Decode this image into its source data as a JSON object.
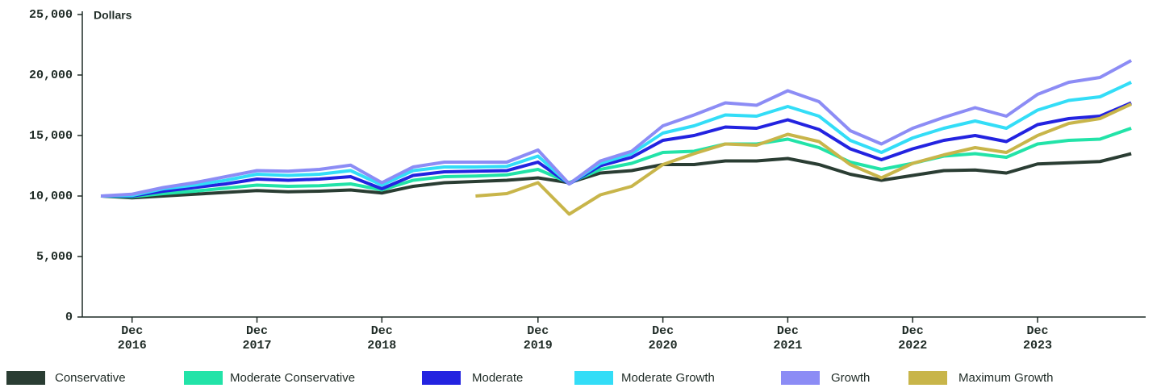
{
  "chart_data": {
    "type": "line",
    "y_axis_label": "Dollars",
    "categories": [
      null,
      "Dec 2016",
      null,
      null,
      null,
      "Dec 2017",
      null,
      null,
      null,
      "Dec 2018",
      null,
      null,
      null,
      null,
      "Dec 2019",
      null,
      null,
      null,
      "Dec 2020",
      null,
      null,
      null,
      "Dec 2021",
      null,
      null,
      null,
      "Dec 2022",
      null,
      null,
      null,
      "Dec 2023",
      null,
      null,
      null
    ],
    "ylim": [
      0,
      25000
    ],
    "yticks": [
      0,
      {
        "value": 5000,
        "label": "5,000"
      },
      {
        "value": 10000,
        "label": "10,000"
      },
      {
        "value": 15000,
        "label": "15,000"
      },
      {
        "value": 20000,
        "label": "20,000"
      },
      {
        "value": 25000,
        "label": "25,000"
      }
    ],
    "series": [
      {
        "name": "Conservative",
        "color": "#2a3d33",
        "values": [
          10000,
          9850,
          10000,
          10150,
          10300,
          10450,
          10350,
          10400,
          10500,
          10250,
          10800,
          11100,
          11200,
          11300,
          11500,
          11100,
          11900,
          12100,
          12600,
          12600,
          12900,
          12900,
          13100,
          12600,
          11800,
          11300,
          11700,
          12100,
          12150,
          11900,
          12650,
          12750,
          12850,
          13500
        ]
      },
      {
        "name": "Moderate Conservative",
        "color": "#22e3a8",
        "values": [
          10000,
          9950,
          10200,
          10400,
          10650,
          10900,
          10800,
          10850,
          11000,
          10500,
          11300,
          11600,
          11650,
          11750,
          12200,
          11100,
          12200,
          12700,
          13600,
          13700,
          14300,
          14300,
          14700,
          14000,
          12800,
          12200,
          12700,
          13300,
          13500,
          13200,
          14300,
          14600,
          14700,
          15600
        ]
      },
      {
        "name": "Moderate",
        "color": "#2323e0",
        "values": [
          10000,
          10000,
          10400,
          10700,
          11000,
          11400,
          11300,
          11400,
          11600,
          10600,
          11700,
          12000,
          12050,
          12100,
          12800,
          11000,
          12500,
          13200,
          14600,
          15000,
          15700,
          15600,
          16300,
          15500,
          13900,
          13000,
          13900,
          14600,
          15000,
          14500,
          15900,
          16400,
          16600,
          17700
        ]
      },
      {
        "name": "Moderate Growth",
        "color": "#33ddf7",
        "values": [
          10000,
          10050,
          10600,
          10900,
          11300,
          11800,
          11700,
          11800,
          12100,
          10900,
          12100,
          12400,
          12400,
          12450,
          13300,
          11000,
          12700,
          13500,
          15200,
          15800,
          16700,
          16600,
          17400,
          16600,
          14600,
          13600,
          14800,
          15600,
          16200,
          15600,
          17100,
          17900,
          18200,
          19400
        ]
      },
      {
        "name": "Growth",
        "color": "#8c8cf5",
        "values": [
          10000,
          10150,
          10700,
          11100,
          11600,
          12100,
          12050,
          12200,
          12550,
          11100,
          12400,
          12800,
          12800,
          12800,
          13800,
          11000,
          12900,
          13700,
          15800,
          16700,
          17700,
          17500,
          18700,
          17800,
          15400,
          14300,
          15600,
          16500,
          17300,
          16600,
          18400,
          19400,
          19800,
          21200
        ]
      },
      {
        "name": "Maximum Growth",
        "color": "#c8b54a",
        "values": [
          null,
          null,
          null,
          null,
          null,
          null,
          null,
          null,
          null,
          null,
          null,
          null,
          10000,
          10200,
          11100,
          8500,
          10100,
          10800,
          12600,
          13500,
          14300,
          14200,
          15100,
          14500,
          12600,
          11500,
          12700,
          13400,
          14000,
          13600,
          15000,
          16000,
          16400,
          17600
        ]
      }
    ]
  }
}
